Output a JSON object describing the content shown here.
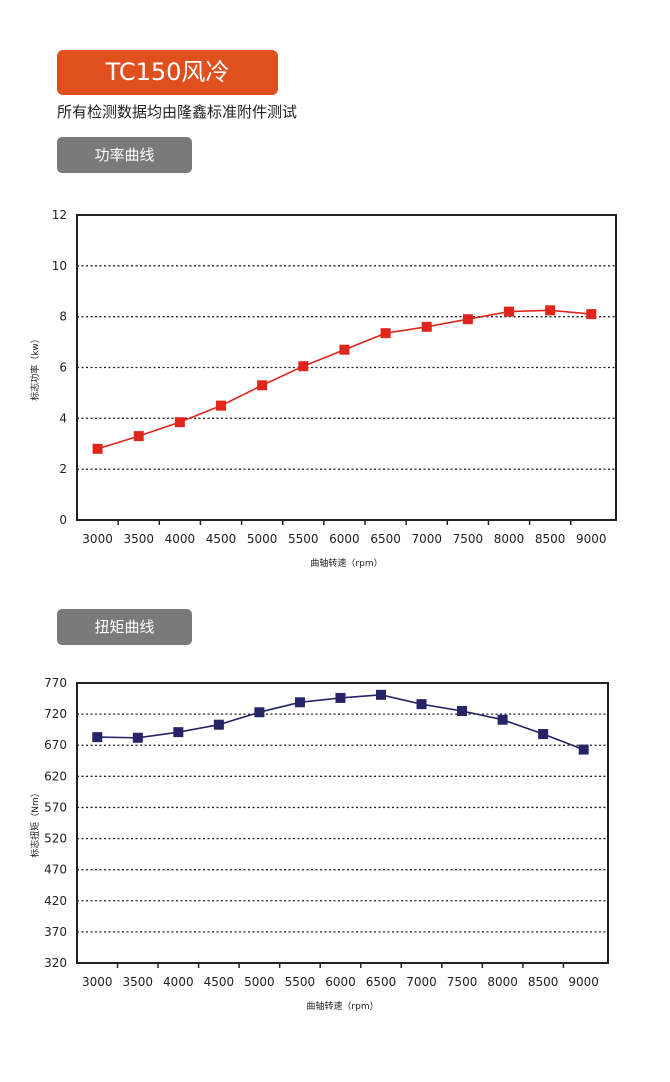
{
  "header": {
    "title": "TC150风冷",
    "subtitle": "所有检测数据均由隆鑫标准附件测试"
  },
  "sections": {
    "power_tab": "功率曲线",
    "torque_tab": "扭矩曲线"
  },
  "colors": {
    "accent": "#e0501f",
    "tab_bg": "#7a7a7a",
    "power_series": "#e0261c",
    "torque_series": "#262367"
  },
  "chart_data": [
    {
      "type": "line",
      "x": [
        3000,
        3500,
        4000,
        4500,
        5000,
        5500,
        6000,
        6500,
        7000,
        7500,
        8000,
        8500,
        9000
      ],
      "series": [
        {
          "values": [
            2.8,
            3.3,
            3.85,
            4.5,
            5.3,
            6.05,
            6.7,
            7.35,
            7.6,
            7.9,
            8.2,
            8.25,
            8.1
          ]
        }
      ],
      "xlabel": "曲轴转速（rpm）",
      "ylabel": "标志功率（kw）",
      "ylim": [
        0,
        12
      ],
      "yticks": [
        0,
        2,
        4,
        6,
        8,
        10,
        12
      ],
      "grid": "horizontal dotted",
      "marker": "square"
    },
    {
      "type": "line",
      "x": [
        3000,
        3500,
        4000,
        4500,
        5000,
        5500,
        6000,
        6500,
        7000,
        7500,
        8000,
        8500,
        9000
      ],
      "series": [
        {
          "values": [
            683,
            682,
            691,
            703,
            723,
            739,
            746,
            751,
            736,
            725,
            711,
            688,
            663
          ]
        }
      ],
      "xlabel": "曲轴转速（rpm）",
      "ylabel": "标志扭矩（Nm）",
      "ylim": [
        320,
        770
      ],
      "yticks": [
        320,
        370,
        420,
        470,
        520,
        570,
        620,
        670,
        720,
        770
      ],
      "grid": "horizontal dotted",
      "marker": "square"
    }
  ]
}
